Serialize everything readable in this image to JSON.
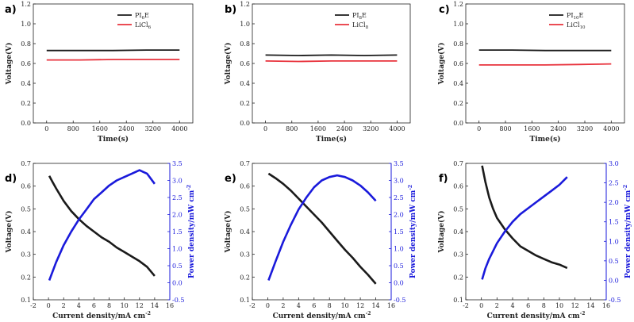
{
  "chart_data": [
    {
      "panel": "a)",
      "type": "line",
      "xlabel": "Time(s)",
      "ylabel": "Voltage(V)",
      "xlim": [
        -400,
        4400
      ],
      "ylim": [
        0,
        1.2
      ],
      "xticks": [
        0,
        800,
        1600,
        2400,
        3200,
        4000
      ],
      "yticks": [
        0.0,
        0.2,
        0.4,
        0.6,
        0.8,
        1.0,
        1.2
      ],
      "legend_position": "top-right",
      "series": [
        {
          "name": "PI",
          "name_sub": "6",
          "name_tail": "E",
          "color": "#1a1a1a",
          "x": [
            0,
            1000,
            2000,
            3000,
            4000
          ],
          "y": [
            0.73,
            0.73,
            0.73,
            0.735,
            0.735
          ]
        },
        {
          "name": "LiCl",
          "name_sub": "6",
          "name_tail": "",
          "color": "#e8323c",
          "x": [
            0,
            1000,
            2000,
            3000,
            4000
          ],
          "y": [
            0.635,
            0.635,
            0.64,
            0.64,
            0.64
          ]
        }
      ]
    },
    {
      "panel": "b)",
      "type": "line",
      "xlabel": "Time(s)",
      "ylabel": "Voltage(V)",
      "xlim": [
        -400,
        4400
      ],
      "ylim": [
        0,
        1.2
      ],
      "xticks": [
        0,
        800,
        1600,
        2400,
        3200,
        4000
      ],
      "yticks": [
        0.0,
        0.2,
        0.4,
        0.6,
        0.8,
        1.0,
        1.2
      ],
      "legend_position": "top-right",
      "series": [
        {
          "name": "PI",
          "name_sub": "8",
          "name_tail": "E",
          "color": "#1a1a1a",
          "x": [
            0,
            1000,
            2000,
            3000,
            4000
          ],
          "y": [
            0.685,
            0.68,
            0.685,
            0.68,
            0.685
          ]
        },
        {
          "name": "LiCl",
          "name_sub": "8",
          "name_tail": "",
          "color": "#e8323c",
          "x": [
            0,
            1000,
            2000,
            3000,
            4000
          ],
          "y": [
            0.625,
            0.62,
            0.625,
            0.625,
            0.625
          ]
        }
      ]
    },
    {
      "panel": "c)",
      "type": "line",
      "xlabel": "Time(s)",
      "ylabel": "Voltage(V)",
      "xlim": [
        -400,
        4400
      ],
      "ylim": [
        0,
        1.2
      ],
      "xticks": [
        0,
        800,
        1600,
        2400,
        3200,
        4000
      ],
      "yticks": [
        0.0,
        0.2,
        0.4,
        0.6,
        0.8,
        1.0,
        1.2
      ],
      "legend_position": "top-right",
      "series": [
        {
          "name": "PI",
          "name_sub": "10",
          "name_tail": "E",
          "color": "#1a1a1a",
          "x": [
            0,
            1000,
            2000,
            3000,
            4000
          ],
          "y": [
            0.735,
            0.735,
            0.73,
            0.73,
            0.73
          ]
        },
        {
          "name": "LiCl",
          "name_sub": "10",
          "name_tail": "",
          "color": "#e8323c",
          "x": [
            0,
            1000,
            2000,
            3000,
            4000
          ],
          "y": [
            0.585,
            0.585,
            0.585,
            0.59,
            0.595
          ]
        }
      ]
    },
    {
      "panel": "d)",
      "type": "line",
      "xlabel": "Current density/mA cm",
      "xlabel_sup": "-2",
      "ylabel": "Voltage(V)",
      "y2label": "Power density/mW cm",
      "y2label_sup": "-2",
      "xlim": [
        -2,
        16
      ],
      "ylim": [
        0.1,
        0.7
      ],
      "y2lim": [
        -0.5,
        3.5
      ],
      "xticks": [
        -2,
        0,
        2,
        4,
        6,
        8,
        10,
        12,
        14,
        16
      ],
      "yticks": [
        0.1,
        0.2,
        0.3,
        0.4,
        0.5,
        0.6,
        0.7
      ],
      "y2ticks": [
        -0.5,
        0.0,
        0.5,
        1.0,
        1.5,
        2.0,
        2.5,
        3.0,
        3.5
      ],
      "voltage": {
        "color": "#1a1a1a",
        "x": [
          0.1,
          0.5,
          1,
          2,
          3,
          4,
          5,
          6,
          7,
          8,
          9,
          10,
          11,
          12,
          13,
          13.5,
          14
        ],
        "y": [
          0.645,
          0.62,
          0.59,
          0.535,
          0.49,
          0.455,
          0.425,
          0.4,
          0.375,
          0.355,
          0.33,
          0.31,
          0.29,
          0.27,
          0.245,
          0.225,
          0.205
        ]
      },
      "power": {
        "color": "#1a1adb",
        "axis": "right",
        "x": [
          0.1,
          1,
          2,
          3,
          4,
          5,
          6,
          7,
          8,
          9,
          10,
          11,
          12,
          12.5,
          13,
          13.5,
          14
        ],
        "y": [
          0.07,
          0.6,
          1.1,
          1.5,
          1.85,
          2.15,
          2.45,
          2.65,
          2.85,
          3.0,
          3.1,
          3.2,
          3.3,
          3.25,
          3.2,
          3.05,
          2.9
        ]
      }
    },
    {
      "panel": "e)",
      "type": "line",
      "xlabel": "Current density/mA cm",
      "xlabel_sup": "-2",
      "ylabel": "Voltage(V)",
      "y2label": "Power density/mW cm",
      "y2label_sup": "-2",
      "xlim": [
        -2,
        16
      ],
      "ylim": [
        0.1,
        0.7
      ],
      "y2lim": [
        -0.5,
        3.5
      ],
      "xticks": [
        -2,
        0,
        2,
        4,
        6,
        8,
        10,
        12,
        14,
        16
      ],
      "yticks": [
        0.1,
        0.2,
        0.3,
        0.4,
        0.5,
        0.6,
        0.7
      ],
      "y2ticks": [
        -0.5,
        0.0,
        0.5,
        1.0,
        1.5,
        2.0,
        2.5,
        3.0,
        3.5
      ],
      "voltage": {
        "color": "#1a1a1a",
        "x": [
          0.1,
          1,
          2,
          3,
          4,
          5,
          6,
          7,
          8,
          9,
          10,
          11,
          12,
          13,
          14
        ],
        "y": [
          0.655,
          0.635,
          0.61,
          0.58,
          0.545,
          0.51,
          0.475,
          0.44,
          0.4,
          0.36,
          0.32,
          0.285,
          0.245,
          0.21,
          0.17
        ]
      },
      "power": {
        "color": "#1a1adb",
        "axis": "right",
        "x": [
          0.1,
          1,
          2,
          3,
          4,
          5,
          6,
          7,
          8,
          9,
          10,
          11,
          12,
          13,
          14
        ],
        "y": [
          0.07,
          0.62,
          1.2,
          1.7,
          2.15,
          2.5,
          2.8,
          3.0,
          3.1,
          3.15,
          3.1,
          3.0,
          2.85,
          2.65,
          2.4
        ]
      }
    },
    {
      "panel": "f)",
      "type": "line",
      "xlabel": "Current density/mA cm",
      "xlabel_sup": "-2",
      "ylabel": "Voltage(V)",
      "y2label": "Power density/mW cm",
      "y2label_sup": "-2",
      "xlim": [
        -2,
        16
      ],
      "ylim": [
        0.1,
        0.7
      ],
      "y2lim": [
        -0.5,
        3.0
      ],
      "xticks": [
        -2,
        0,
        2,
        4,
        6,
        8,
        10,
        12,
        14,
        16
      ],
      "yticks": [
        0.1,
        0.2,
        0.3,
        0.4,
        0.5,
        0.6,
        0.7
      ],
      "y2ticks": [
        -0.5,
        0.0,
        0.5,
        1.0,
        1.5,
        2.0,
        2.5,
        3.0
      ],
      "voltage": {
        "color": "#1a1a1a",
        "x": [
          0.1,
          0.5,
          1,
          1.5,
          2,
          3,
          4,
          5,
          6,
          7,
          8,
          9,
          10,
          11
        ],
        "y": [
          0.69,
          0.62,
          0.55,
          0.5,
          0.46,
          0.41,
          0.37,
          0.335,
          0.315,
          0.295,
          0.28,
          0.265,
          0.255,
          0.24
        ]
      },
      "power": {
        "color": "#1a1adb",
        "axis": "right",
        "x": [
          0.1,
          0.5,
          1,
          2,
          3,
          4,
          5,
          6,
          7,
          8,
          9,
          10,
          11
        ],
        "y": [
          0.02,
          0.3,
          0.55,
          0.95,
          1.25,
          1.5,
          1.7,
          1.85,
          2.0,
          2.15,
          2.3,
          2.45,
          2.65
        ]
      }
    }
  ]
}
